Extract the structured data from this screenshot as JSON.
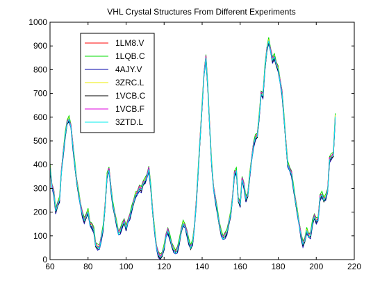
{
  "chart_data": {
    "type": "line",
    "title": "VHL Crystal Structures From Different Experiments",
    "xlabel": "",
    "ylabel": "",
    "xlim": [
      60,
      220
    ],
    "ylim": [
      0,
      1000
    ],
    "xticks": [
      60,
      80,
      100,
      120,
      140,
      160,
      180,
      200,
      220
    ],
    "yticks": [
      0,
      100,
      200,
      300,
      400,
      500,
      600,
      700,
      800,
      900,
      1000
    ],
    "grid": false,
    "legend_position": "top-left",
    "x": [
      60,
      61,
      62,
      63,
      64,
      65,
      66,
      67,
      68,
      69,
      70,
      71,
      72,
      73,
      74,
      75,
      76,
      77,
      78,
      79,
      80,
      81,
      82,
      83,
      84,
      85,
      86,
      87,
      88,
      89,
      90,
      91,
      92,
      93,
      94,
      95,
      96,
      97,
      98,
      99,
      100,
      101,
      102,
      103,
      104,
      105,
      106,
      107,
      108,
      109,
      110,
      111,
      112,
      113,
      114,
      115,
      116,
      117,
      118,
      119,
      120,
      121,
      122,
      123,
      124,
      125,
      126,
      127,
      128,
      129,
      130,
      131,
      132,
      133,
      134,
      135,
      136,
      137,
      138,
      139,
      140,
      141,
      142,
      143,
      144,
      145,
      146,
      147,
      148,
      149,
      150,
      151,
      152,
      153,
      154,
      155,
      156,
      157,
      158,
      159,
      160,
      161,
      162,
      163,
      164,
      165,
      166,
      167,
      168,
      169,
      170,
      171,
      172,
      173,
      174,
      175,
      176,
      177,
      178,
      179,
      180,
      181,
      182,
      183,
      184,
      185,
      186,
      187,
      188,
      189,
      190,
      191,
      192,
      193,
      194,
      195,
      196,
      197,
      198,
      199,
      200,
      201,
      202,
      203,
      204,
      205,
      206,
      207,
      208,
      209,
      210
    ],
    "base": [
      390,
      310,
      280,
      200,
      230,
      250,
      370,
      450,
      520,
      575,
      590,
      560,
      480,
      400,
      330,
      280,
      230,
      190,
      160,
      180,
      200,
      150,
      140,
      120,
      60,
      50,
      50,
      90,
      130,
      230,
      350,
      380,
      300,
      230,
      190,
      150,
      110,
      120,
      140,
      160,
      130,
      160,
      180,
      210,
      240,
      270,
      280,
      300,
      290,
      320,
      330,
      350,
      380,
      300,
      200,
      120,
      50,
      20,
      5,
      20,
      50,
      100,
      120,
      90,
      60,
      40,
      30,
      40,
      70,
      120,
      150,
      140,
      110,
      70,
      50,
      70,
      140,
      250,
      380,
      520,
      650,
      780,
      850,
      720,
      550,
      400,
      300,
      250,
      200,
      150,
      110,
      90,
      100,
      110,
      150,
      190,
      260,
      360,
      370,
      250,
      230,
      340,
      310,
      250,
      270,
      350,
      420,
      480,
      510,
      520,
      600,
      700,
      690,
      800,
      880,
      920,
      880,
      840,
      850,
      820,
      800,
      750,
      700,
      600,
      500,
      400,
      380,
      360,
      300,
      250,
      200,
      150,
      100,
      60,
      80,
      120,
      100,
      100,
      150,
      180,
      160,
      170,
      260,
      270,
      250,
      260,
      290,
      420,
      430,
      440,
      600
    ],
    "series": [
      {
        "name": "1LM8.V",
        "color": "#ff0000",
        "offset": 8
      },
      {
        "name": "1LQB.C",
        "color": "#00dd00",
        "offset": 14
      },
      {
        "name": "4AJY.V",
        "color": "#0000aa",
        "offset": -8
      },
      {
        "name": "3ZRC.L",
        "color": "#eeee00",
        "offset": 4
      },
      {
        "name": "1VCB.C",
        "color": "#000000",
        "offset": -3
      },
      {
        "name": "1VCB.F",
        "color": "#dd00dd",
        "offset": 6
      },
      {
        "name": "3ZTD.L",
        "color": "#00eeee",
        "offset": 0
      }
    ]
  }
}
